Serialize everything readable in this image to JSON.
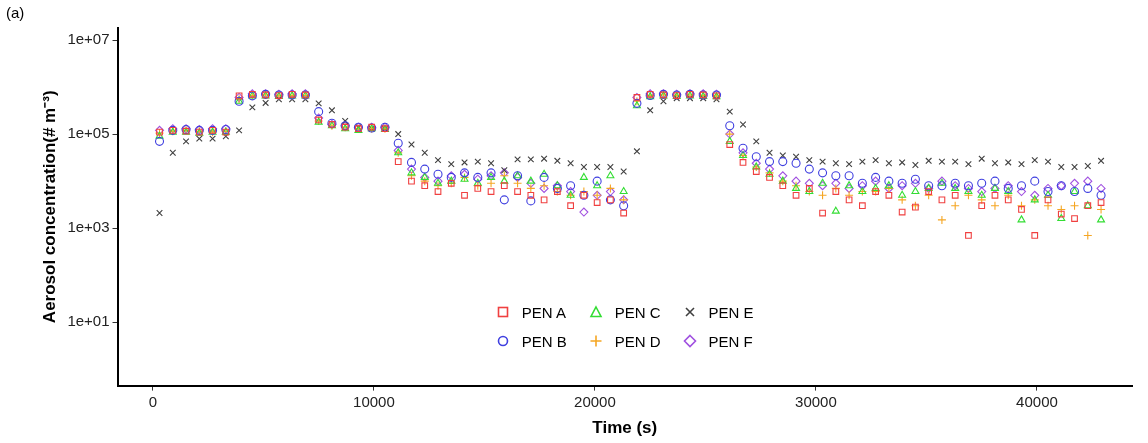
{
  "chart_data": {
    "type": "scatter",
    "xlabel": "Time (s)",
    "ylabel": "Aerosol concentration(# m⁻³)",
    "annotations": [
      "(a)"
    ],
    "x": [
      300,
      900,
      1500,
      2100,
      2700,
      3300,
      3900,
      4500,
      5100,
      5700,
      6300,
      6900,
      7500,
      8100,
      8700,
      9300,
      9900,
      10500,
      11100,
      11700,
      12300,
      12900,
      13500,
      14100,
      14700,
      15300,
      15900,
      16500,
      17100,
      17700,
      18300,
      18900,
      19500,
      20100,
      20700,
      21300,
      21900,
      22500,
      23100,
      23700,
      24300,
      24900,
      25500,
      26100,
      26700,
      27300,
      27900,
      28500,
      29100,
      29700,
      30300,
      30900,
      31500,
      32100,
      32700,
      33300,
      33900,
      34500,
      35100,
      35700,
      36300,
      36900,
      37500,
      38100,
      38700,
      39300,
      39900,
      40500,
      41100,
      41700,
      42300,
      42900
    ],
    "xlim": [
      -1600,
      44300
    ],
    "xticks": [
      0,
      10000,
      20000,
      30000,
      40000
    ],
    "log": "y",
    "ylim": [
      0.45,
      18000000
    ],
    "yticks": [
      {
        "value": 10,
        "label": "1e+01"
      },
      {
        "value": 1000,
        "label": "1e+03"
      },
      {
        "value": 100000,
        "label": "1e+05"
      },
      {
        "value": 10000000,
        "label": "1e+07"
      }
    ],
    "grid": false,
    "legend": "bottom",
    "series": [
      {
        "name": "PEN A",
        "color": "#f04040",
        "marker": "square",
        "values": [
          110000,
          120000,
          115000,
          110000,
          120000,
          110000,
          650000,
          700000,
          680000,
          660000,
          700000,
          680000,
          200000,
          160000,
          140000,
          130000,
          140000,
          130000,
          26000,
          10000,
          8000,
          6000,
          9000,
          5000,
          7000,
          6000,
          8000,
          6000,
          5000,
          4000,
          6000,
          3000,
          5000,
          3500,
          4000,
          2100,
          600000,
          700000,
          680000,
          660000,
          700000,
          680000,
          650000,
          60000,
          25000,
          16000,
          12000,
          8000,
          5000,
          7000,
          2100,
          6000,
          4000,
          3000,
          6000,
          5000,
          2200,
          2800,
          6000,
          4000,
          5000,
          700,
          3000,
          5000,
          4000,
          2500,
          700,
          4000,
          2000,
          1600,
          3000,
          3500
        ]
      },
      {
        "name": "PEN B",
        "color": "#4040e0",
        "marker": "circle",
        "values": [
          70000,
          120000,
          125000,
          120000,
          120000,
          125000,
          500000,
          650000,
          700000,
          680000,
          680000,
          680000,
          300000,
          170000,
          150000,
          140000,
          135000,
          140000,
          64000,
          25000,
          18000,
          14000,
          12000,
          15000,
          12000,
          15000,
          4000,
          13000,
          3800,
          12000,
          7000,
          8000,
          5000,
          10000,
          4000,
          3000,
          450000,
          660000,
          700000,
          680000,
          700000,
          680000,
          680000,
          150000,
          50000,
          33000,
          26000,
          26000,
          24000,
          18000,
          15000,
          13000,
          13000,
          9000,
          12000,
          10000,
          9000,
          11000,
          8000,
          8000,
          9000,
          8000,
          9000,
          10000,
          7000,
          8000,
          10000,
          6000,
          8000,
          6000,
          7000,
          5000
        ]
      },
      {
        "name": "PEN C",
        "color": "#33dd33",
        "marker": "triangle",
        "values": [
          90000,
          110000,
          110000,
          105000,
          110000,
          110000,
          500000,
          650000,
          650000,
          630000,
          650000,
          650000,
          180000,
          150000,
          130000,
          120000,
          130000,
          125000,
          40000,
          15000,
          12000,
          9000,
          10000,
          11000,
          9000,
          12000,
          10000,
          13000,
          10000,
          14000,
          8000,
          5000,
          12000,
          8000,
          13000,
          6000,
          400000,
          620000,
          650000,
          630000,
          650000,
          630000,
          620000,
          70000,
          35000,
          20000,
          14000,
          10000,
          7000,
          6000,
          9000,
          2300,
          8000,
          6000,
          7000,
          8000,
          5000,
          6000,
          7000,
          9000,
          7000,
          6000,
          5000,
          7000,
          6000,
          1500,
          4000,
          5000,
          1600,
          6000,
          3000,
          1500
        ]
      },
      {
        "name": "PEN D",
        "color": "#f5a623",
        "marker": "plus",
        "values": [
          105000,
          115000,
          120000,
          115000,
          110000,
          115000,
          550000,
          660000,
          680000,
          650000,
          660000,
          660000,
          190000,
          150000,
          140000,
          130000,
          130000,
          130000,
          40000,
          13000,
          10000,
          8000,
          9000,
          12000,
          8000,
          9000,
          13000,
          9000,
          7000,
          8000,
          6000,
          5000,
          6000,
          5000,
          7000,
          4000,
          500000,
          660000,
          680000,
          660000,
          680000,
          660000,
          640000,
          100000,
          35000,
          20000,
          15000,
          10000,
          8000,
          6000,
          5000,
          7000,
          5000,
          6000,
          6000,
          7000,
          4000,
          3000,
          5000,
          1500,
          3000,
          5000,
          4000,
          3000,
          5000,
          3000,
          4000,
          3000,
          2500,
          3000,
          700,
          2500
        ]
      },
      {
        "name": "PEN E",
        "color": "#404040",
        "marker": "cross",
        "values": [
          2100,
          40000,
          70000,
          80000,
          80000,
          90000,
          120000,
          370000,
          460000,
          550000,
          550000,
          550000,
          450000,
          320000,
          190000,
          140000,
          130000,
          130000,
          100000,
          60000,
          40000,
          28000,
          23000,
          25000,
          26000,
          24000,
          17000,
          29000,
          29000,
          30000,
          27000,
          24000,
          20000,
          20000,
          20000,
          16000,
          43000,
          320000,
          500000,
          580000,
          580000,
          580000,
          550000,
          300000,
          160000,
          70000,
          40000,
          35000,
          33000,
          28000,
          26000,
          24000,
          23000,
          26000,
          28000,
          24000,
          25000,
          22000,
          27000,
          26000,
          26000,
          23000,
          30000,
          24000,
          25000,
          23000,
          28000,
          26000,
          20000,
          20000,
          21000,
          27000
        ]
      },
      {
        "name": "PEN F",
        "color": "#a050e0",
        "marker": "diamond",
        "values": [
          120000,
          130000,
          130000,
          125000,
          130000,
          130000,
          600000,
          720000,
          720000,
          700000,
          720000,
          720000,
          220000,
          160000,
          150000,
          140000,
          140000,
          140000,
          45000,
          18000,
          12000,
          10000,
          13000,
          14000,
          11000,
          13000,
          15000,
          12000,
          9000,
          7000,
          8000,
          6000,
          2200,
          5000,
          6000,
          4000,
          600000,
          720000,
          720000,
          700000,
          720000,
          720000,
          700000,
          100000,
          40000,
          24000,
          18000,
          13000,
          10000,
          9000,
          8000,
          9000,
          7000,
          8000,
          10000,
          7000,
          8000,
          9000,
          7000,
          10000,
          8000,
          7000,
          6000,
          7000,
          8000,
          6000,
          5000,
          7000,
          8000,
          9000,
          10000,
          7000
        ]
      }
    ]
  }
}
